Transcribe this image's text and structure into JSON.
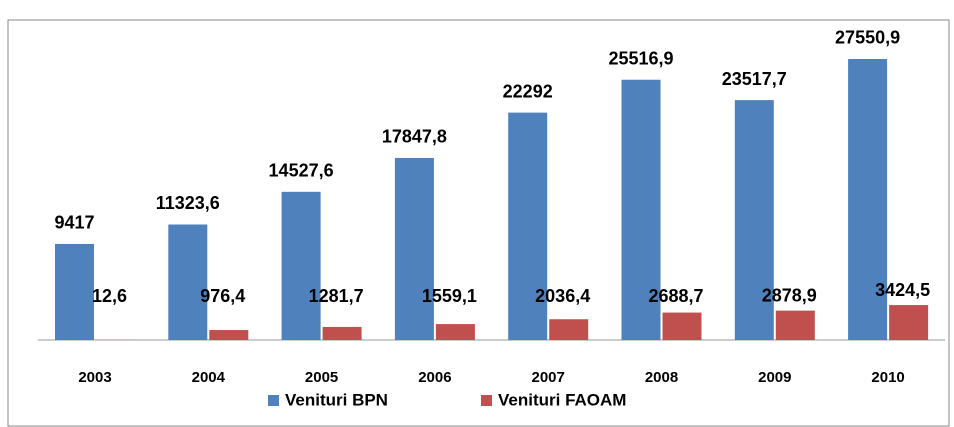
{
  "chart_data": {
    "type": "bar",
    "categories": [
      "2003",
      "2004",
      "2005",
      "2006",
      "2007",
      "2008",
      "2009",
      "2010"
    ],
    "series": [
      {
        "name": "Venituri BPN",
        "color": "#4f81bd",
        "values": [
          9417,
          11323.6,
          14527.6,
          17847.8,
          22292,
          25516.9,
          23517.7,
          27550.9
        ],
        "value_labels": [
          "9417",
          "11323,6",
          "14527,6",
          "17847,8",
          "22292",
          "25516,9",
          "23517,7",
          "27550,9"
        ]
      },
      {
        "name": "Venituri FAOAM",
        "color": "#c0504d",
        "values": [
          12.6,
          976.4,
          1281.7,
          1559.1,
          2036.4,
          2688.7,
          2878.9,
          3424.5
        ],
        "value_labels": [
          "12,6",
          "976,4",
          "1281,7",
          "1559,1",
          "2036,4",
          "2688,7",
          "2878,9",
          "3424,5"
        ]
      }
    ],
    "ylim": [
      0,
      30000
    ],
    "legend": "bottom"
  }
}
